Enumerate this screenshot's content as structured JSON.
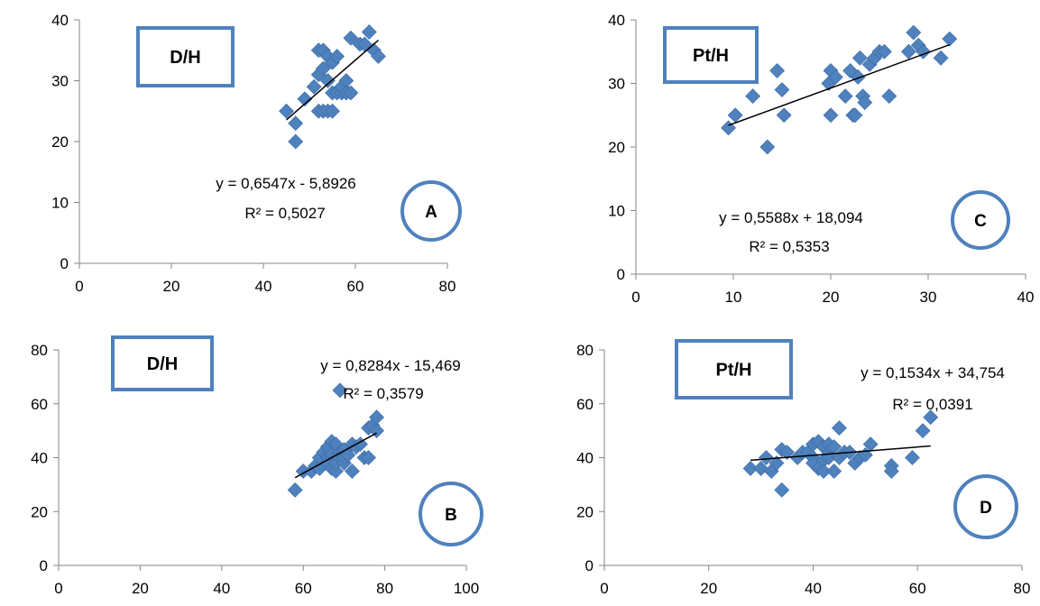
{
  "colors": {
    "marker": "#4f81bd",
    "frame": "#4f81bd",
    "trend": "#000000",
    "axis": "#868686"
  },
  "chart_data": [
    {
      "type": "scatter",
      "panel": "A",
      "box_label": "D/H",
      "equation": "y = 0,6547x - 5,8926",
      "r2": "R² = 0,5027",
      "xlim": [
        0,
        80
      ],
      "ylim": [
        0,
        40
      ],
      "xticks": [
        0,
        20,
        40,
        60,
        80
      ],
      "yticks": [
        0,
        10,
        20,
        30,
        40
      ],
      "xtick_labels": [
        "0",
        "20",
        "40",
        "60",
        "80"
      ],
      "ytick_labels": [
        "0",
        "10",
        "20",
        "30",
        "40"
      ],
      "grid": false,
      "trendline": {
        "slope": 0.6547,
        "intercept": -5.8926,
        "x_range": [
          45,
          65
        ]
      },
      "x": [
        45,
        47,
        47,
        49,
        51,
        52,
        52,
        52,
        53,
        53,
        53,
        54,
        54,
        54,
        55,
        55,
        55,
        56,
        56,
        57,
        57,
        58,
        58,
        59,
        59,
        61,
        62,
        63,
        64,
        65
      ],
      "y": [
        25,
        23,
        20,
        27,
        29,
        25,
        31,
        35,
        25,
        32,
        35,
        25,
        30,
        34,
        25,
        33,
        28,
        34,
        28,
        28,
        29,
        30,
        28,
        37,
        28,
        36,
        36,
        38,
        35,
        34
      ]
    },
    {
      "type": "scatter",
      "panel": "B",
      "box_label": "D/H",
      "equation": "y = 0,8284x - 15,469",
      "r2": "R² = 0,3579",
      "xlim": [
        0,
        100
      ],
      "ylim": [
        0,
        80
      ],
      "xticks": [
        0,
        20,
        40,
        60,
        80,
        100
      ],
      "yticks": [
        0,
        20,
        40,
        60,
        80
      ],
      "xtick_labels": [
        "0",
        "20",
        "40",
        "60",
        "80",
        "100"
      ],
      "ytick_labels": [
        "0",
        "20",
        "40",
        "60",
        "80"
      ],
      "grid": false,
      "trendline": {
        "slope": 0.8284,
        "intercept": -15.469,
        "x_range": [
          58,
          78
        ]
      },
      "x": [
        58,
        60,
        62,
        63,
        64,
        64,
        65,
        66,
        66,
        66,
        67,
        67,
        67,
        68,
        68,
        68,
        68,
        69,
        69,
        69,
        70,
        70,
        70,
        71,
        72,
        72,
        73,
        74,
        75,
        76,
        76,
        77,
        78,
        78
      ],
      "y": [
        28,
        35,
        35,
        37,
        36,
        40,
        42,
        40,
        38,
        44,
        46,
        36,
        41,
        45,
        40,
        35,
        38,
        42,
        40,
        65,
        38,
        40,
        43,
        41,
        45,
        35,
        44,
        45,
        40,
        40,
        51,
        52,
        50,
        55
      ]
    },
    {
      "type": "scatter",
      "panel": "C",
      "box_label": "Pt/H",
      "equation": "y = 0,5588x + 18,094",
      "r2": "R² = 0,5353",
      "xlim": [
        0,
        40
      ],
      "ylim": [
        0,
        40
      ],
      "xticks": [
        0,
        10,
        20,
        30,
        40
      ],
      "yticks": [
        0,
        10,
        20,
        30,
        40
      ],
      "xtick_labels": [
        "0",
        "10",
        "20",
        "30",
        "40"
      ],
      "ytick_labels": [
        "0",
        "10",
        "20",
        "30",
        "40"
      ],
      "grid": false,
      "trendline": {
        "slope": 0.5588,
        "intercept": 18.094,
        "x_range": [
          9.5,
          32.2
        ]
      },
      "x": [
        9.5,
        10.2,
        12,
        13.5,
        14.5,
        15,
        15.2,
        19.8,
        20,
        20,
        20.5,
        21.5,
        22,
        22.3,
        22.5,
        22.8,
        23,
        23.3,
        23.5,
        24,
        24.5,
        25,
        25.5,
        26,
        28,
        28.5,
        29,
        29.5,
        31.3,
        32.2
      ],
      "y": [
        23,
        25,
        28,
        20,
        32,
        29,
        25,
        30,
        32,
        25,
        31,
        28,
        32,
        25,
        25,
        31,
        34,
        28,
        27,
        33,
        34,
        35,
        35,
        28,
        35,
        38,
        36,
        35,
        34,
        37
      ]
    },
    {
      "type": "scatter",
      "panel": "D",
      "box_label": "Pt/H",
      "equation": "y = 0,1534x + 34,754",
      "r2": "R² = 0,0391",
      "xlim": [
        0,
        80
      ],
      "ylim": [
        0,
        80
      ],
      "xticks": [
        0,
        20,
        40,
        60,
        80
      ],
      "yticks": [
        0,
        20,
        40,
        60,
        80
      ],
      "xtick_labels": [
        "0",
        "20",
        "40",
        "60",
        "80"
      ],
      "ytick_labels": [
        "0",
        "20",
        "40",
        "60",
        "80"
      ],
      "grid": false,
      "trendline": {
        "slope": 0.1534,
        "intercept": 34.754,
        "x_range": [
          28,
          62.5
        ]
      },
      "x": [
        28,
        30,
        31,
        32,
        33,
        34,
        34,
        35,
        37,
        38,
        39,
        40,
        40,
        40,
        41,
        41,
        42,
        42,
        42,
        43,
        43,
        43,
        44,
        44,
        45,
        45,
        46,
        47,
        48,
        49,
        50,
        51,
        55,
        55,
        59,
        61,
        62.5
      ],
      "y": [
        36,
        36,
        40,
        35,
        38,
        43,
        28,
        42,
        40,
        42,
        42,
        40,
        45,
        38,
        36,
        46,
        44,
        39,
        35,
        42,
        40,
        45,
        35,
        44,
        40,
        51,
        42,
        42,
        38,
        40,
        41,
        45,
        37,
        35,
        40,
        50,
        55
      ]
    }
  ]
}
